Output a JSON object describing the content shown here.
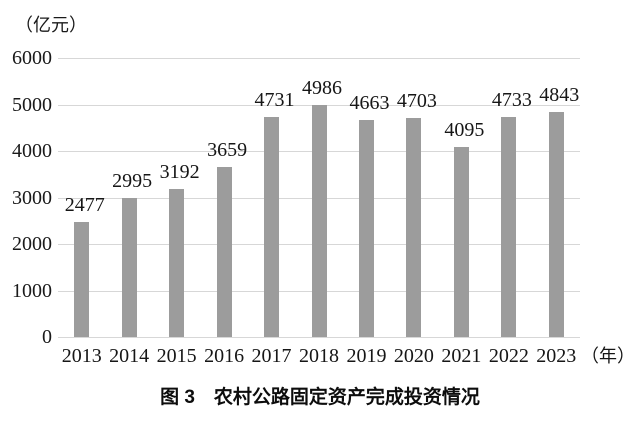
{
  "unit_label": "（亿元）",
  "x_axis_suffix": "（年）",
  "caption": "图 3　农村公路固定资产完成投资情况",
  "colors": {
    "bar": "#9c9c9c",
    "gridline": "#d7d7d7",
    "text": "#161616",
    "background": "#ffffff"
  },
  "chart_data": {
    "type": "bar",
    "categories": [
      "2013",
      "2014",
      "2015",
      "2016",
      "2017",
      "2018",
      "2019",
      "2020",
      "2021",
      "2022",
      "2023"
    ],
    "values": [
      2477,
      2995,
      3192,
      3659,
      4731,
      4986,
      4663,
      4703,
      4095,
      4733,
      4843
    ],
    "title": "图 3　农村公路固定资产完成投资情况",
    "xlabel": "（年）",
    "ylabel": "（亿元）",
    "ylim": [
      0,
      6000
    ],
    "ytick_step": 1000,
    "yticks": [
      "0",
      "1000",
      "2000",
      "3000",
      "4000",
      "5000",
      "6000"
    ],
    "grid": true,
    "data_labels": true,
    "legend": "none"
  }
}
